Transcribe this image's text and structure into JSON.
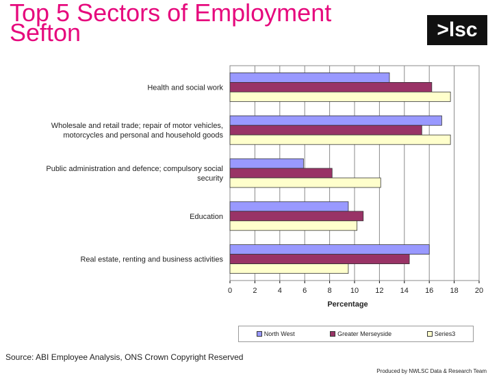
{
  "header": {
    "title_line1": "Top 5 Sectors of Employment",
    "title_line2": "Sefton",
    "logo_text": ">lsc"
  },
  "colors": {
    "title": "#e6097d",
    "north_west": "#9999ff",
    "greater_merseyside": "#993366",
    "series3": "#ffffcc"
  },
  "chart_data": {
    "type": "bar",
    "orientation": "horizontal",
    "categories": [
      [
        "Health and social work"
      ],
      [
        "Wholesale and retail trade; repair of motor vehicles,",
        "motorcycles and personal and household goods"
      ],
      [
        "Public administration and defence; compulsory social",
        "security"
      ],
      [
        "Education"
      ],
      [
        "Real estate, renting and business activities"
      ]
    ],
    "series": [
      {
        "name": "North West",
        "color": "#9999ff",
        "values": [
          12.8,
          17.0,
          5.9,
          9.5,
          16.0
        ]
      },
      {
        "name": "Greater Merseyside",
        "color": "#993366",
        "values": [
          16.2,
          15.4,
          8.2,
          10.7,
          14.4
        ]
      },
      {
        "name": "Series3",
        "color": "#ffffcc",
        "values": [
          17.7,
          17.7,
          12.1,
          10.2,
          9.5
        ]
      }
    ],
    "xlabel": "Percentage",
    "xlim": [
      0,
      20
    ],
    "xticks": [
      "0",
      "2",
      "4",
      "6",
      "8",
      "10",
      "12",
      "14",
      "16",
      "18",
      "20"
    ],
    "grid": true,
    "legend_position": "bottom"
  },
  "footer": {
    "source": "Source: ABI  Employee Analysis, ONS Crown Copyright Reserved",
    "produced_by": "Produced by NWLSC Data & Research Team"
  }
}
